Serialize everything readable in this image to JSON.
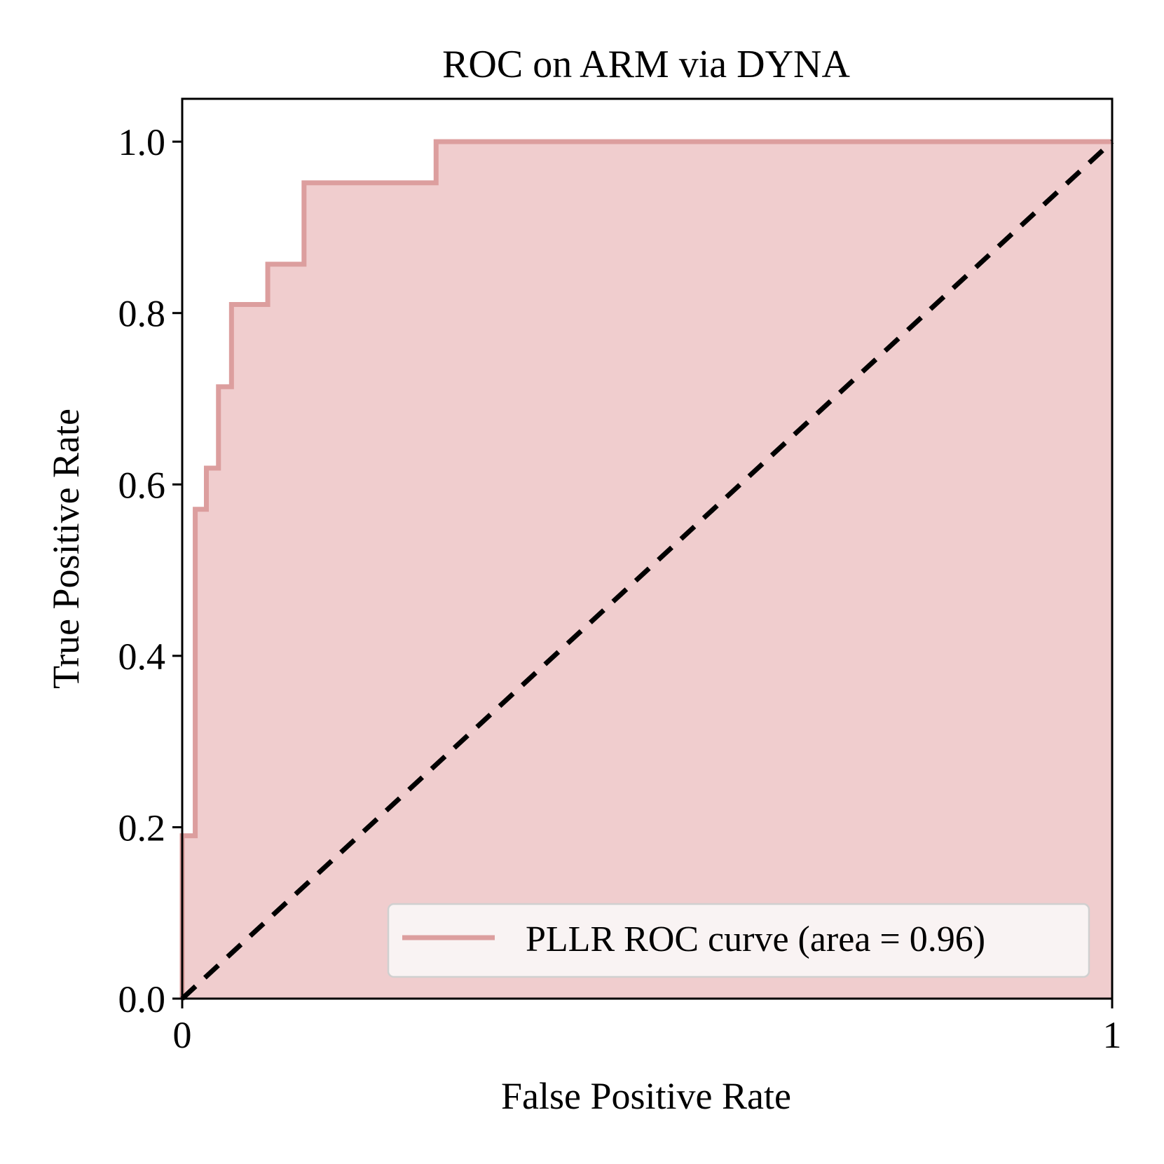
{
  "chart_data": {
    "type": "area",
    "title": "ROC on ARM via DYNA",
    "xlabel": "False Positive Rate",
    "ylabel": "True Positive Rate",
    "xlim": [
      0,
      1
    ],
    "ylim": [
      0,
      1.05
    ],
    "x_ticks": [
      0,
      1
    ],
    "x_tick_labels": [
      "0",
      "1"
    ],
    "y_ticks": [
      0.0,
      0.2,
      0.4,
      0.6,
      0.8,
      1.0
    ],
    "y_tick_labels": [
      "0.0",
      "0.2",
      "0.4",
      "0.6",
      "0.8",
      "1.0"
    ],
    "grid": false,
    "legend_position": "lower-right",
    "series": [
      {
        "name": "PLLR ROC curve (area = 0.96)",
        "color": "#dc9e9e",
        "fill_color": "#f0cdce",
        "x": [
          0.0,
          0.0,
          0.014,
          0.014,
          0.026,
          0.026,
          0.039,
          0.039,
          0.053,
          0.053,
          0.092,
          0.092,
          0.131,
          0.131,
          0.273,
          0.273,
          1.0
        ],
        "y": [
          0.0,
          0.19,
          0.19,
          0.571,
          0.571,
          0.619,
          0.619,
          0.714,
          0.714,
          0.81,
          0.81,
          0.857,
          0.857,
          0.952,
          0.952,
          1.0,
          1.0
        ]
      },
      {
        "color": "#000000",
        "style": "dashed",
        "x": [
          0,
          1
        ],
        "y": [
          0,
          1
        ]
      }
    ]
  }
}
